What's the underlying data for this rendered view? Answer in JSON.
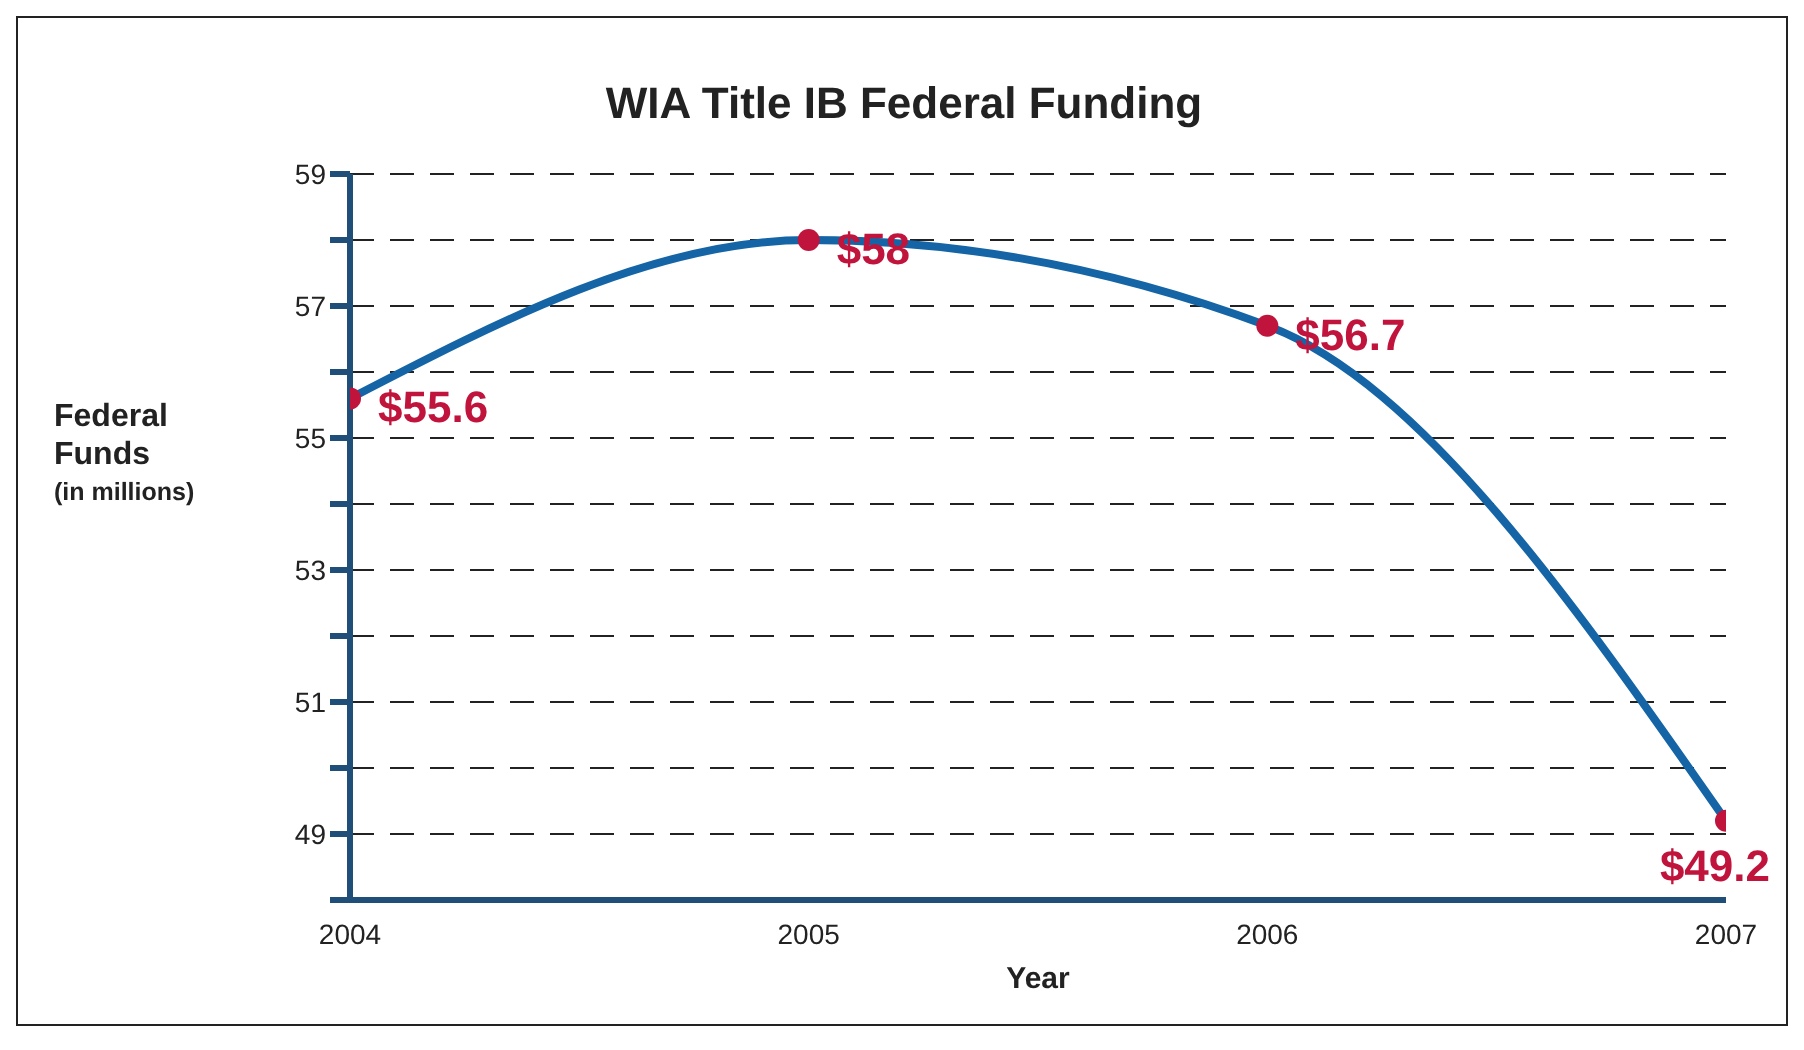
{
  "chart_data": {
    "type": "line",
    "title": "WIA Title IB Federal Funding",
    "xlabel": "Year",
    "ylabel": "Federal Funds",
    "annotations": [
      "(in millions)"
    ],
    "x": [
      2004,
      2005,
      2006,
      2007
    ],
    "series": [
      {
        "color": "#1565a6",
        "colors": [
          "#c0143c",
          "#c0143c",
          "#c0143c",
          "#c0143c"
        ],
        "values": [
          55.6,
          58,
          56.7,
          49.2
        ],
        "value_labels": [
          "$55.6",
          "$58",
          "$56.7",
          "$49.2"
        ]
      }
    ],
    "xlim": [
      2004,
      2007
    ],
    "xticks": [
      2004,
      2005,
      2006,
      2007
    ],
    "ylim": [
      48,
      59
    ],
    "yticks": [
      {
        "value": 48,
        "label": null
      },
      49,
      {
        "value": 50,
        "label": null
      },
      51,
      {
        "value": 52,
        "label": null
      },
      53,
      {
        "value": 54,
        "label": null
      },
      55,
      {
        "value": 56,
        "label": null
      },
      57,
      {
        "value": 58,
        "label": null
      },
      59
    ],
    "grid": "y",
    "marker": "circle",
    "line_style": "solid",
    "legend": false
  }
}
